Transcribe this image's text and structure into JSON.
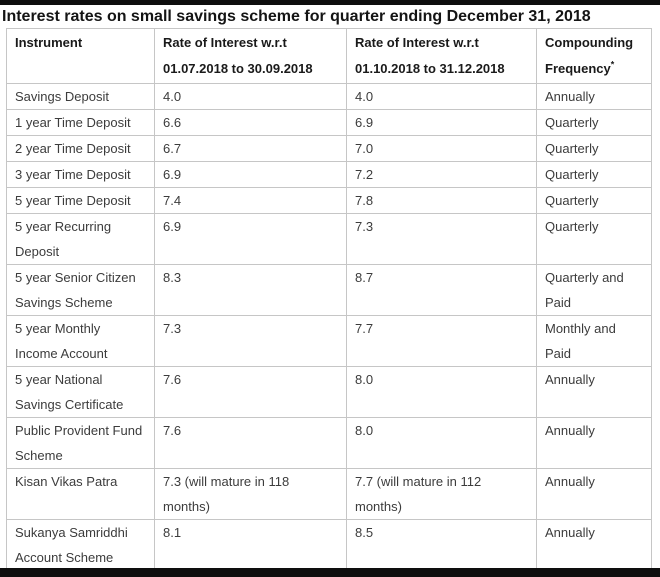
{
  "page": {
    "title": "Interest rates on small savings scheme for quarter ending December 31, 2018"
  },
  "colors": {
    "frame_bar": "#0e0e0e",
    "table_border": "#c6c6c6",
    "body_text": "#3c3c3c",
    "header_text": "#1a1a1a"
  },
  "table": {
    "columns": [
      {
        "label": "Instrument"
      },
      {
        "line1": "Rate of Interest w.r.t",
        "line2": "01.07.2018 to 30.09.2018"
      },
      {
        "line1": "Rate of Interest w.r.t",
        "line2": "01.10.2018 to 31.12.2018"
      },
      {
        "line1": "Compounding",
        "line2": "Frequency",
        "suffix": "*"
      }
    ],
    "rows": [
      {
        "instrument": "Savings Deposit",
        "rate_q3_2018": "4.0",
        "rate_q4_2018": "4.0",
        "compounding": "Annually"
      },
      {
        "instrument": "1 year Time Deposit",
        "rate_q3_2018": "6.6",
        "rate_q4_2018": "6.9",
        "compounding": "Quarterly"
      },
      {
        "instrument": "2 year Time Deposit",
        "rate_q3_2018": "6.7",
        "rate_q4_2018": "7.0",
        "compounding": "Quarterly"
      },
      {
        "instrument": "3 year Time Deposit",
        "rate_q3_2018": "6.9",
        "rate_q4_2018": "7.2",
        "compounding": "Quarterly"
      },
      {
        "instrument": "5 year Time Deposit",
        "rate_q3_2018": "7.4",
        "rate_q4_2018": "7.8",
        "compounding": "Quarterly"
      },
      {
        "instrument": "5 year Recurring Deposit",
        "rate_q3_2018": "6.9",
        "rate_q4_2018": "7.3",
        "compounding": "Quarterly"
      },
      {
        "instrument": "5 year Senior Citizen Savings Scheme",
        "rate_q3_2018": "8.3",
        "rate_q4_2018": "8.7",
        "compounding": "Quarterly and Paid"
      },
      {
        "instrument": "5 year Monthly Income Account",
        "rate_q3_2018": "7.3",
        "rate_q4_2018": "7.7",
        "compounding": "Monthly and Paid"
      },
      {
        "instrument": "5 year National Savings Certificate",
        "rate_q3_2018": "7.6",
        "rate_q4_2018": "8.0",
        "compounding": "Annually"
      },
      {
        "instrument": "Public Provident Fund Scheme",
        "rate_q3_2018": "7.6",
        "rate_q4_2018": "8.0",
        "compounding": "Annually"
      },
      {
        "instrument": "Kisan Vikas Patra",
        "rate_q3_2018": "7.3 (will mature in 118 months)",
        "rate_q4_2018": "7.7 (will mature in 112 months)",
        "compounding": "Annually"
      },
      {
        "instrument": "Sukanya Samriddhi Account Scheme",
        "rate_q3_2018": "8.1",
        "rate_q4_2018": "8.5",
        "compounding": "Annually"
      }
    ]
  }
}
